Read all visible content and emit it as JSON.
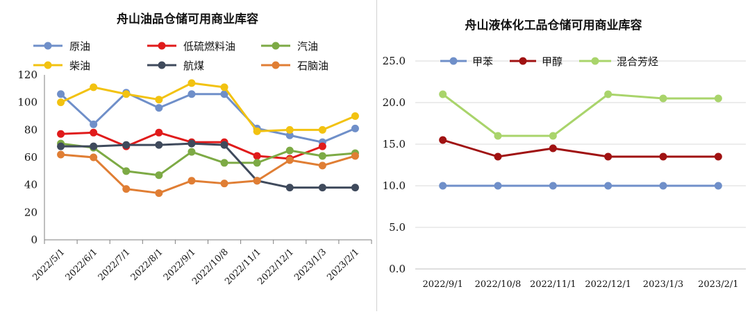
{
  "chart_data": [
    {
      "type": "line",
      "title": "舟山油品仓储可用商业库容",
      "categories": [
        "2022/5/1",
        "2022/6/1",
        "2022/7/1",
        "2022/8/1",
        "2022/9/1",
        "2022/10/8",
        "2022/11/1",
        "2022/12/1",
        "2023/1/3",
        "2023/2/1"
      ],
      "ylim": [
        0,
        120
      ],
      "yticks": [
        "0",
        "20",
        "40",
        "60",
        "80",
        "100",
        "120"
      ],
      "legend_position": "top",
      "grid": false,
      "series": [
        {
          "name": "原油",
          "color": "#6f8fc9",
          "values": [
            106,
            84,
            107,
            96,
            106,
            106,
            81,
            76,
            71,
            81
          ]
        },
        {
          "name": "低硫燃料油",
          "color": "#e01b1b",
          "values": [
            77,
            78,
            68,
            78,
            71,
            71,
            61,
            59,
            68,
            null
          ]
        },
        {
          "name": "汽油",
          "color": "#7daa45",
          "values": [
            70,
            67,
            50,
            47,
            64,
            56,
            56,
            65,
            61,
            63
          ]
        },
        {
          "name": "柴油",
          "color": "#f2c211",
          "values": [
            100,
            111,
            106,
            102,
            114,
            111,
            79,
            80,
            80,
            90
          ]
        },
        {
          "name": "航煤",
          "color": "#3f4a5c",
          "values": [
            68,
            68,
            69,
            69,
            70,
            69,
            43,
            38,
            38,
            38
          ]
        },
        {
          "name": "石脑油",
          "color": "#e07e34",
          "values": [
            62,
            60,
            37,
            34,
            43,
            41,
            43,
            58,
            54,
            61
          ]
        }
      ]
    },
    {
      "type": "line",
      "title": "舟山液体化工品仓储可用商业库容",
      "categories": [
        "2022/9/1",
        "2022/10/8",
        "2022/11/1",
        "2022/12/1",
        "2023/1/3",
        "2023/2/1"
      ],
      "ylim": [
        0,
        25
      ],
      "yticks": [
        "0.0",
        "5.0",
        "10.0",
        "15.0",
        "20.0",
        "25.0"
      ],
      "legend_position": "top",
      "grid": true,
      "series": [
        {
          "name": "甲苯",
          "color": "#6f8fc9",
          "values": [
            10,
            10,
            10,
            10,
            10,
            10
          ]
        },
        {
          "name": "甲醇",
          "color": "#a01212",
          "values": [
            15.5,
            13.5,
            14.5,
            13.5,
            13.5,
            13.5
          ]
        },
        {
          "name": "混合芳烃",
          "color": "#a9d46b",
          "values": [
            21,
            16,
            16,
            21,
            20.5,
            20.5
          ]
        }
      ]
    }
  ]
}
